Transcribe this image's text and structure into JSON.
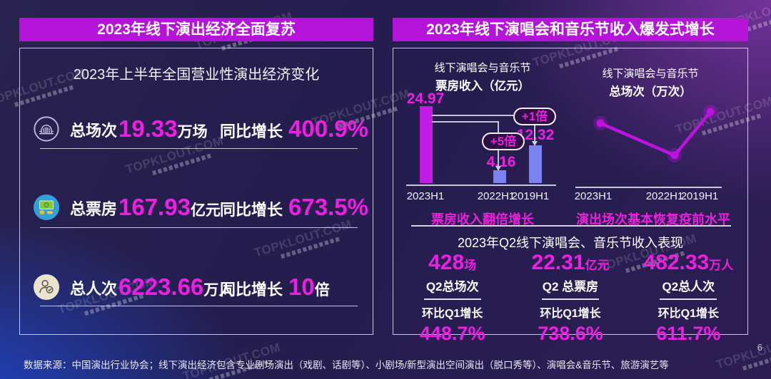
{
  "page": {
    "page_number": "6",
    "footer_source": "数据来源：中国演出行业协会；线下演出经济包含专业剧场演出（戏剧、话剧等）、小剧场/新型演出空间演出（脱口秀等）、演唱会&音乐节、旅游演艺等",
    "watermark": "TOPKLOUT.COM"
  },
  "colors": {
    "header_bg": "#b414d8",
    "magenta_text": "#ee1fe2",
    "bar_2023": "#c21ce4",
    "bar_other": "#7d83ee",
    "line_series": "#bd13e0"
  },
  "left_panel": {
    "header": "2023年线下演出经济全面复苏",
    "box_title": "2023年上半年全国营业性演出经济变化",
    "rows": [
      {
        "icon": "venue-icon",
        "label": "总场次",
        "value": "19.33",
        "unit": "万场",
        "growth_label": "同比增长",
        "growth_value": "400.9%",
        "growth_unit": ""
      },
      {
        "icon": "box-office-icon",
        "label": "总票房",
        "value": "167.93",
        "unit": "亿元",
        "growth_label": "同比增长",
        "growth_value": "673.5%",
        "growth_unit": ""
      },
      {
        "icon": "attendance-icon",
        "label": "总人次",
        "value": "6223.66",
        "unit": "万人",
        "growth_label": "同比增长",
        "growth_value": "10",
        "growth_unit": "倍"
      }
    ]
  },
  "right_panel": {
    "header": "2023年线下演唱会和音乐节收入爆发式增长",
    "q2": {
      "title": "2023年Q2线下演唱会、音乐节收入表现",
      "stats": [
        {
          "value": "428",
          "unit": "场",
          "label": "Q2总场次",
          "growth_label": "环比Q1增长",
          "growth_value": "448.7%"
        },
        {
          "value": "22.31",
          "unit": "亿元",
          "label": "Q2 总票房",
          "growth_label": "环比Q1增长",
          "growth_value": "738.6%"
        },
        {
          "value": "482.33",
          "unit": "万人",
          "label": "Q2总人次",
          "growth_label": "环比Q1增长",
          "growth_value": "611.7%"
        }
      ]
    }
  },
  "chart_data": [
    {
      "type": "bar",
      "title": "线下演唱会与音乐节票房收入（亿元）",
      "title_line1": "线下演唱会与音乐节",
      "title_line2": "票房收入（亿元）",
      "categories": [
        "2023H1",
        "2022H1",
        "2019H1"
      ],
      "values": [
        24.97,
        4.16,
        12.32
      ],
      "ylim": [
        0,
        26
      ],
      "bar_colors": [
        "#c21ce4",
        "#7d83ee",
        "#7d83ee"
      ],
      "annotations": [
        {
          "label": "+1倍",
          "target": "2019H1",
          "meaning": "2023H1 is +1x vs 2019H1"
        },
        {
          "label": "+5倍",
          "target": "2022H1",
          "meaning": "2023H1 is +5x vs 2022H1"
        }
      ],
      "caption": "票房收入翻倍增长",
      "legend": "none",
      "grid": "off"
    },
    {
      "type": "line",
      "title": "线下演唱会与音乐节总场次（万次）",
      "title_line1": "线下演唱会与音乐节",
      "title_line2": "总场次（万次）",
      "categories": [
        "2023H1",
        "2022H1",
        "2019H1"
      ],
      "values_normalized": [
        0.85,
        0.42,
        1.0
      ],
      "note": "no numeric point labels shown in source; values estimated relative to 2019H1 peak",
      "caption": "演出场次基本恢复疫前水平",
      "legend": "none",
      "grid": "off"
    }
  ]
}
